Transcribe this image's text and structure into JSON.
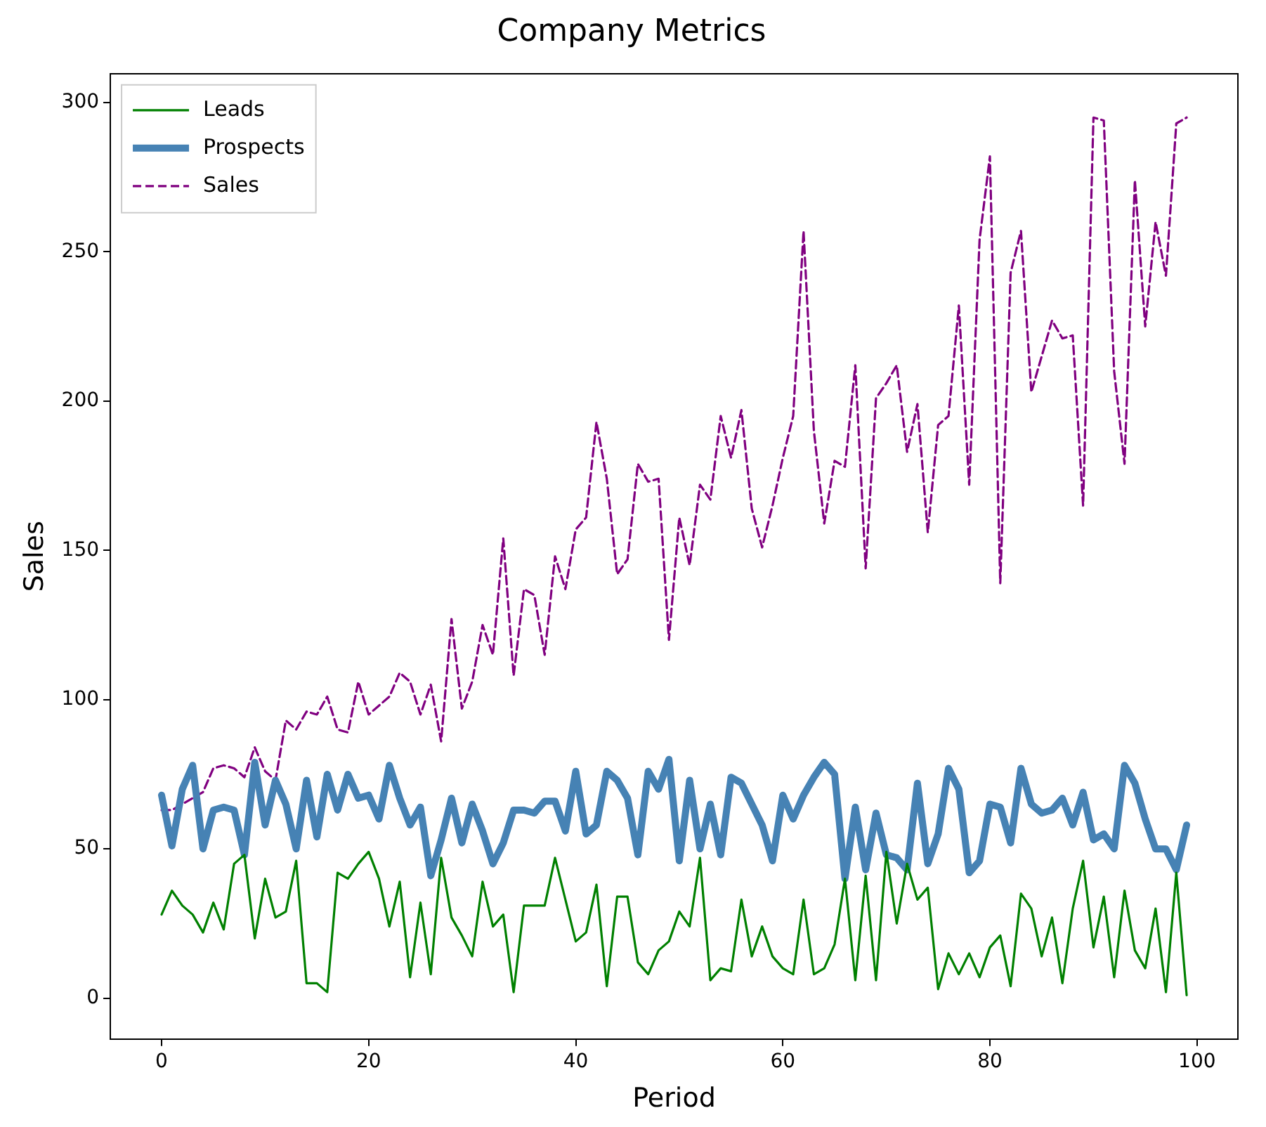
{
  "chart_data": {
    "type": "line",
    "title": "Company Metrics",
    "xlabel": "Period",
    "ylabel": "Sales",
    "x": [
      0,
      1,
      2,
      3,
      4,
      5,
      6,
      7,
      8,
      9,
      10,
      11,
      12,
      13,
      14,
      15,
      16,
      17,
      18,
      19,
      20,
      21,
      22,
      23,
      24,
      25,
      26,
      27,
      28,
      29,
      30,
      31,
      32,
      33,
      34,
      35,
      36,
      37,
      38,
      39,
      40,
      41,
      42,
      43,
      44,
      45,
      46,
      47,
      48,
      49,
      50,
      51,
      52,
      53,
      54,
      55,
      56,
      57,
      58,
      59,
      60,
      61,
      62,
      63,
      64,
      65,
      66,
      67,
      68,
      69,
      70,
      71,
      72,
      73,
      74,
      75,
      76,
      77,
      78,
      79,
      80,
      81,
      82,
      83,
      84,
      85,
      86,
      87,
      88,
      89,
      90,
      91,
      92,
      93,
      94,
      95,
      96,
      97,
      98,
      99
    ],
    "series": [
      {
        "name": "Leads",
        "color": "#008000",
        "line_style": "solid",
        "values": [
          28,
          36,
          31,
          28,
          22,
          32,
          23,
          45,
          48,
          20,
          40,
          27,
          29,
          46,
          5,
          5,
          2,
          42,
          40,
          45,
          49,
          40,
          24,
          39,
          7,
          32,
          8,
          47,
          27,
          21,
          14,
          39,
          24,
          28,
          2,
          31,
          31,
          31,
          47,
          33,
          19,
          22,
          38,
          4,
          34,
          34,
          12,
          8,
          16,
          19,
          29,
          24,
          47,
          6,
          10,
          9,
          33,
          14,
          24,
          14,
          10,
          8,
          33,
          8,
          10,
          18,
          40,
          6,
          41,
          6,
          49,
          25,
          45,
          33,
          37,
          3,
          15,
          8,
          15,
          7,
          17,
          21,
          4,
          35,
          30,
          14,
          27,
          5,
          30,
          46,
          17,
          34,
          7,
          36,
          16,
          10,
          30,
          2,
          42,
          1
        ]
      },
      {
        "name": "Prospects",
        "color": "#4682b4",
        "line_style": "solid",
        "values": [
          68,
          51,
          70,
          78,
          50,
          63,
          64,
          63,
          48,
          79,
          58,
          73,
          65,
          50,
          73,
          54,
          75,
          63,
          75,
          67,
          68,
          60,
          78,
          67,
          58,
          64,
          41,
          53,
          67,
          52,
          65,
          56,
          45,
          52,
          63,
          63,
          62,
          66,
          66,
          56,
          76,
          55,
          58,
          76,
          73,
          67,
          48,
          76,
          70,
          80,
          46,
          73,
          50,
          65,
          48,
          74,
          72,
          65,
          58,
          46,
          68,
          60,
          68,
          74,
          79,
          75,
          40,
          64,
          43,
          62,
          48,
          47,
          43,
          72,
          45,
          55,
          77,
          70,
          42,
          46,
          65,
          64,
          52,
          77,
          65,
          62,
          63,
          67,
          58,
          69,
          53,
          55,
          50,
          78,
          72,
          60,
          50,
          50,
          43,
          58
        ]
      },
      {
        "name": "Sales",
        "color": "#800080",
        "line_style": "dashed",
        "values": [
          63,
          63,
          65,
          67,
          69,
          77,
          78,
          77,
          74,
          84,
          76,
          73,
          93,
          90,
          96,
          95,
          101,
          90,
          89,
          106,
          95,
          98,
          101,
          109,
          106,
          95,
          105,
          86,
          127,
          97,
          106,
          125,
          115,
          154,
          108,
          137,
          135,
          115,
          148,
          137,
          157,
          161,
          193,
          174,
          142,
          147,
          179,
          173,
          174,
          120,
          161,
          145,
          172,
          167,
          195,
          181,
          197,
          164,
          151,
          165,
          181,
          195,
          257,
          190,
          159,
          180,
          178,
          212,
          144,
          201,
          206,
          212,
          183,
          199,
          156,
          192,
          195,
          232,
          172,
          254,
          282,
          139,
          243,
          257,
          203,
          215,
          227,
          221,
          222,
          165,
          295,
          294,
          210,
          179,
          274,
          225,
          260,
          242,
          293,
          295
        ]
      }
    ],
    "xlim": [
      -4.95,
      103.95
    ],
    "xticks": [
      0,
      20,
      40,
      60,
      80,
      100
    ],
    "ylim": [
      -13.7,
      309.7
    ],
    "yticks": [
      0,
      50,
      100,
      150,
      200,
      250,
      300
    ],
    "grid": false,
    "legend": "top left"
  }
}
